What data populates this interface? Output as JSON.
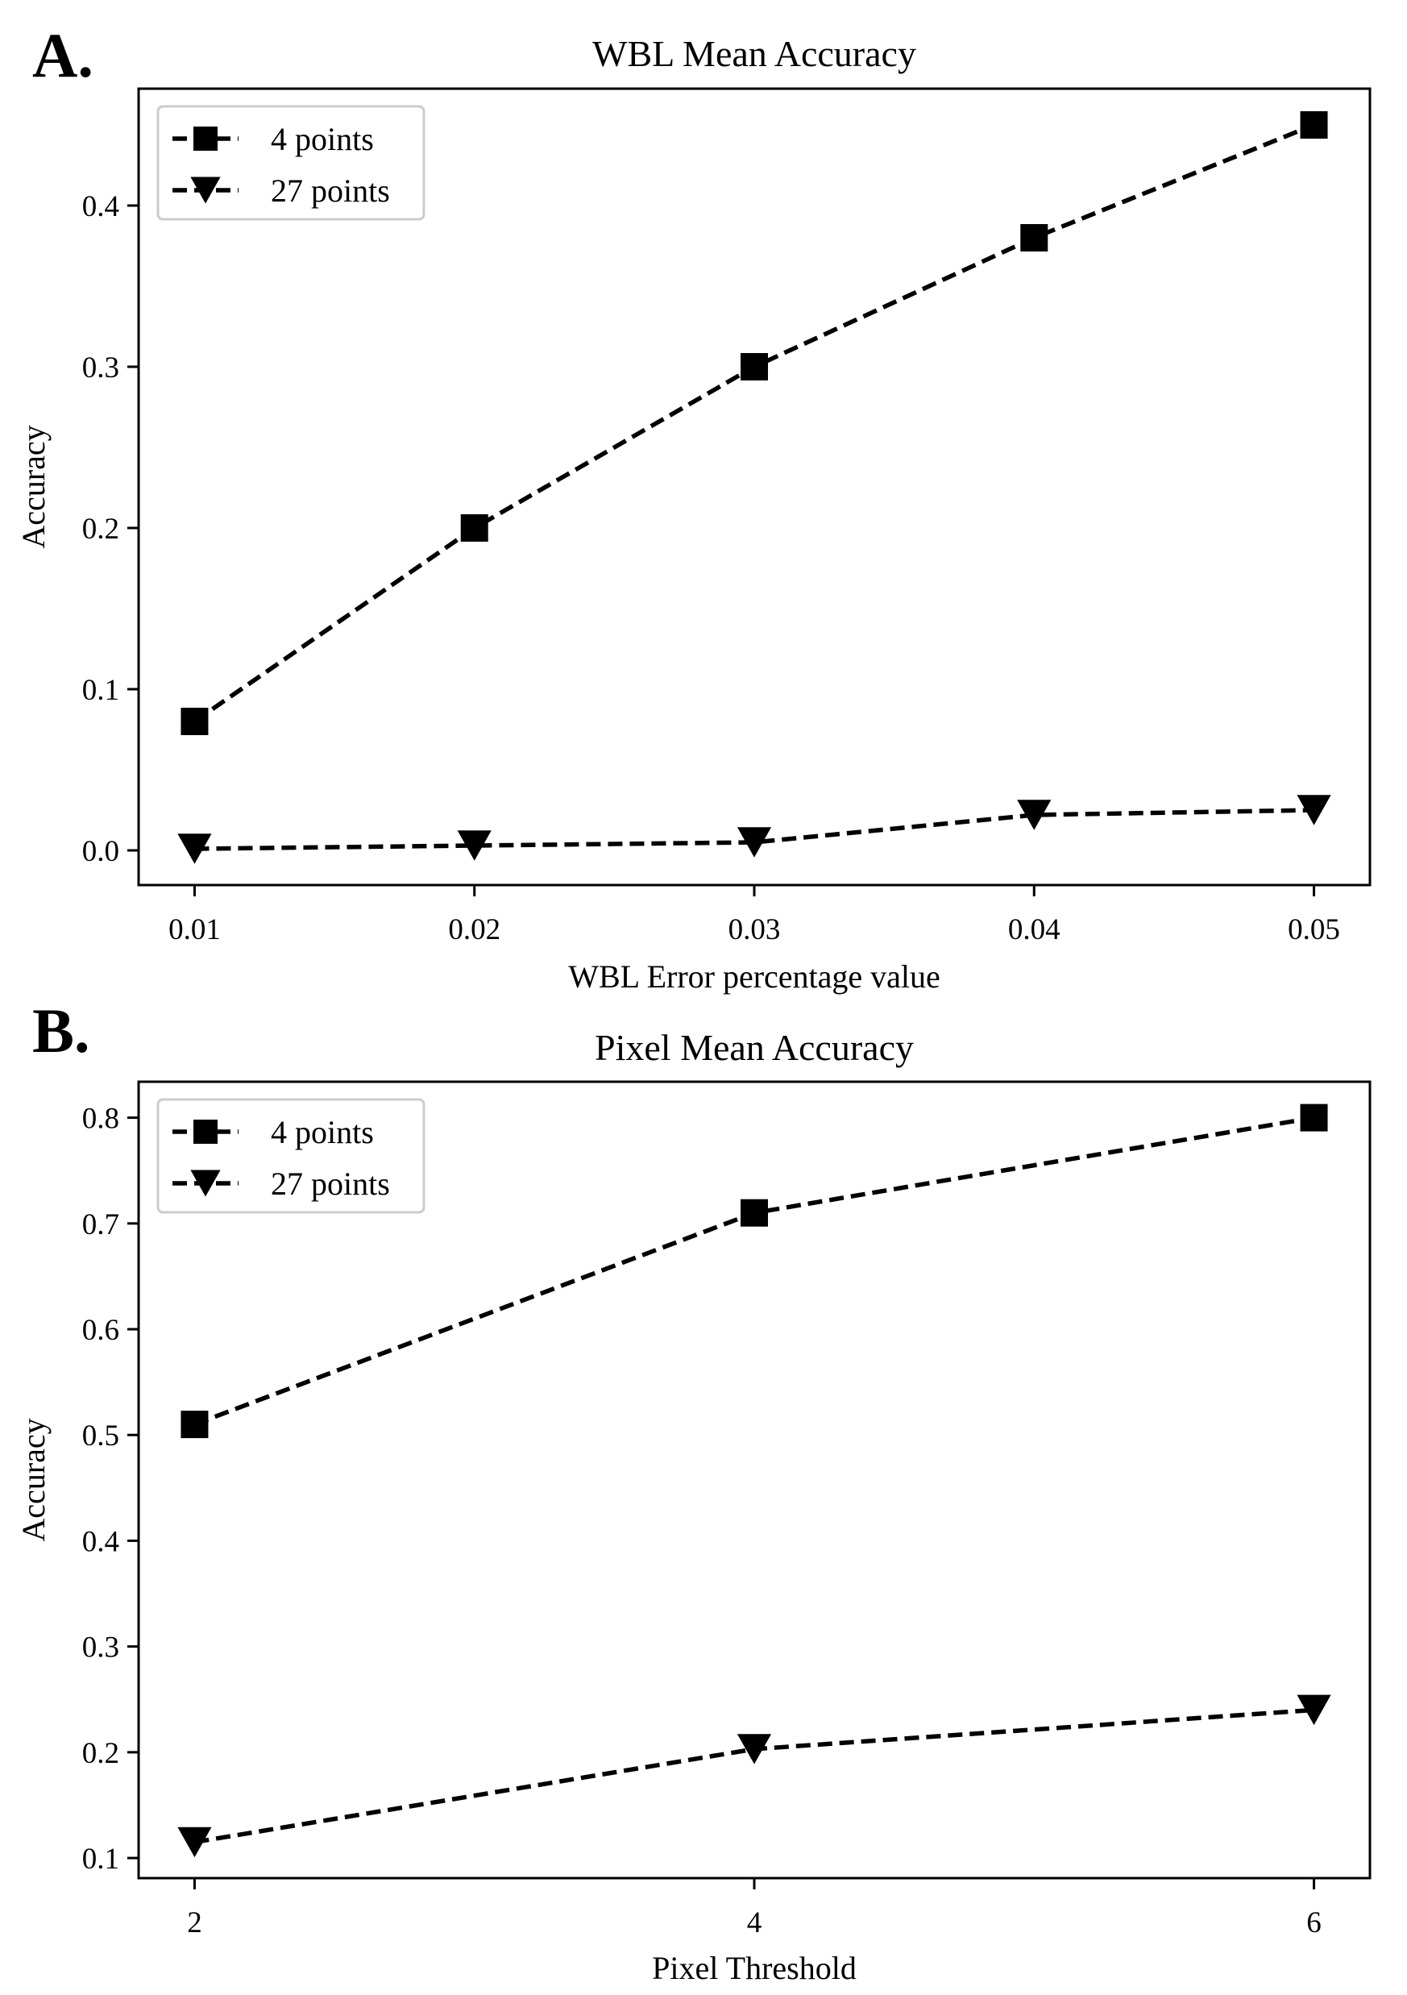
{
  "chart_data": [
    {
      "panel_label": "A.",
      "type": "line",
      "title": "WBL Mean Accuracy",
      "xlabel": "WBL Error percentage value",
      "ylabel": "Accuracy",
      "x": [
        0.01,
        0.02,
        0.03,
        0.04,
        0.05
      ],
      "x_tick_values": [
        0.01,
        0.02,
        0.03,
        0.04,
        0.05
      ],
      "x_tick_labels": [
        "0.01",
        "0.02",
        "0.03",
        "0.04",
        "0.05"
      ],
      "y_tick_values": [
        0.0,
        0.1,
        0.2,
        0.3,
        0.4
      ],
      "y_tick_labels": [
        "0.0",
        "0.1",
        "0.2",
        "0.3",
        "0.4"
      ],
      "xlim": [
        0.008,
        0.052
      ],
      "ylim": [
        -0.0215,
        0.4725
      ],
      "grid": false,
      "legend_position": "upper-left",
      "series": [
        {
          "name": "4 points",
          "marker": "square",
          "linestyle": "dashed",
          "color": "#000000",
          "values": [
            0.08,
            0.2,
            0.3,
            0.38,
            0.45
          ]
        },
        {
          "name": "27 points",
          "marker": "triangle-down",
          "linestyle": "dashed",
          "color": "#000000",
          "values": [
            0.001,
            0.003,
            0.005,
            0.022,
            0.025
          ]
        }
      ]
    },
    {
      "panel_label": "B.",
      "type": "line",
      "title": "Pixel Mean Accuracy",
      "xlabel": "Pixel Threshold",
      "ylabel": "Accuracy",
      "x": [
        2,
        4,
        6
      ],
      "x_tick_values": [
        2,
        4,
        6
      ],
      "x_tick_labels": [
        "2",
        "4",
        "6"
      ],
      "y_tick_values": [
        0.1,
        0.2,
        0.3,
        0.4,
        0.5,
        0.6,
        0.7,
        0.8
      ],
      "y_tick_labels": [
        "0.1",
        "0.2",
        "0.3",
        "0.4",
        "0.5",
        "0.6",
        "0.7",
        "0.8"
      ],
      "xlim": [
        1.8,
        6.2
      ],
      "ylim": [
        0.081,
        0.834
      ],
      "grid": false,
      "legend_position": "upper-left",
      "series": [
        {
          "name": "4 points",
          "marker": "square",
          "linestyle": "dashed",
          "color": "#000000",
          "values": [
            0.51,
            0.71,
            0.8
          ]
        },
        {
          "name": "27 points",
          "marker": "triangle-down",
          "linestyle": "dashed",
          "color": "#000000",
          "values": [
            0.115,
            0.203,
            0.24
          ]
        }
      ]
    }
  ]
}
